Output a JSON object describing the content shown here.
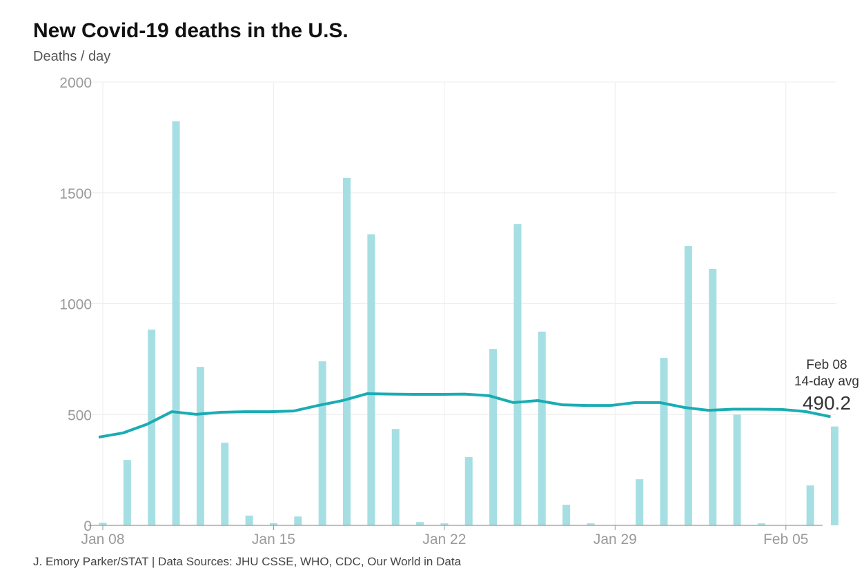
{
  "title": "New Covid-19 deaths in the U.S.",
  "subtitle": "Deaths / day",
  "source": "J. Emory Parker/STAT | Data Sources: JHU CSSE, WHO, CDC, Our World in Data",
  "chart_data": {
    "type": "bar",
    "title": "New Covid-19 deaths in the U.S.",
    "ylabel": "Deaths / day",
    "ylim": [
      0,
      2000
    ],
    "yticks": [
      0,
      500,
      1000,
      1500,
      2000
    ],
    "xticks": [
      "Jan 08",
      "Jan 15",
      "Jan 22",
      "Jan 29",
      "Feb 05"
    ],
    "grid": true,
    "colors": {
      "bar": "#a6dfe3",
      "line": "#1aacb3"
    },
    "categories": [
      "Jan 08",
      "Jan 09",
      "Jan 10",
      "Jan 11",
      "Jan 12",
      "Jan 13",
      "Jan 14",
      "Jan 15",
      "Jan 16",
      "Jan 17",
      "Jan 18",
      "Jan 19",
      "Jan 20",
      "Jan 21",
      "Jan 22",
      "Jan 23",
      "Jan 24",
      "Jan 25",
      "Jan 26",
      "Jan 27",
      "Jan 28",
      "Jan 29",
      "Jan 30",
      "Jan 31",
      "Feb 01",
      "Feb 02",
      "Feb 03",
      "Feb 04",
      "Feb 05",
      "Feb 06",
      "Feb 07"
    ],
    "series": [
      {
        "type": "bar",
        "values": [
          12,
          295,
          883,
          1823,
          715,
          373,
          44,
          10,
          40,
          740,
          1568,
          1313,
          435,
          15,
          9,
          308,
          796,
          1359,
          874,
          93,
          9,
          0,
          208,
          756,
          1260,
          1157,
          500,
          9,
          0,
          180,
          446
        ]
      },
      {
        "type": "line",
        "values": [
          398,
          417,
          457,
          513,
          501,
          510,
          513,
          513,
          516,
          541,
          563,
          594,
          592,
          591,
          591,
          592,
          585,
          554,
          563,
          544,
          541,
          541,
          554,
          554,
          532,
          519,
          524,
          524,
          523,
          513,
          490.2
        ]
      }
    ],
    "annotation": {
      "date": "Feb 08",
      "label": "14-day avg",
      "value": "490.2"
    }
  }
}
